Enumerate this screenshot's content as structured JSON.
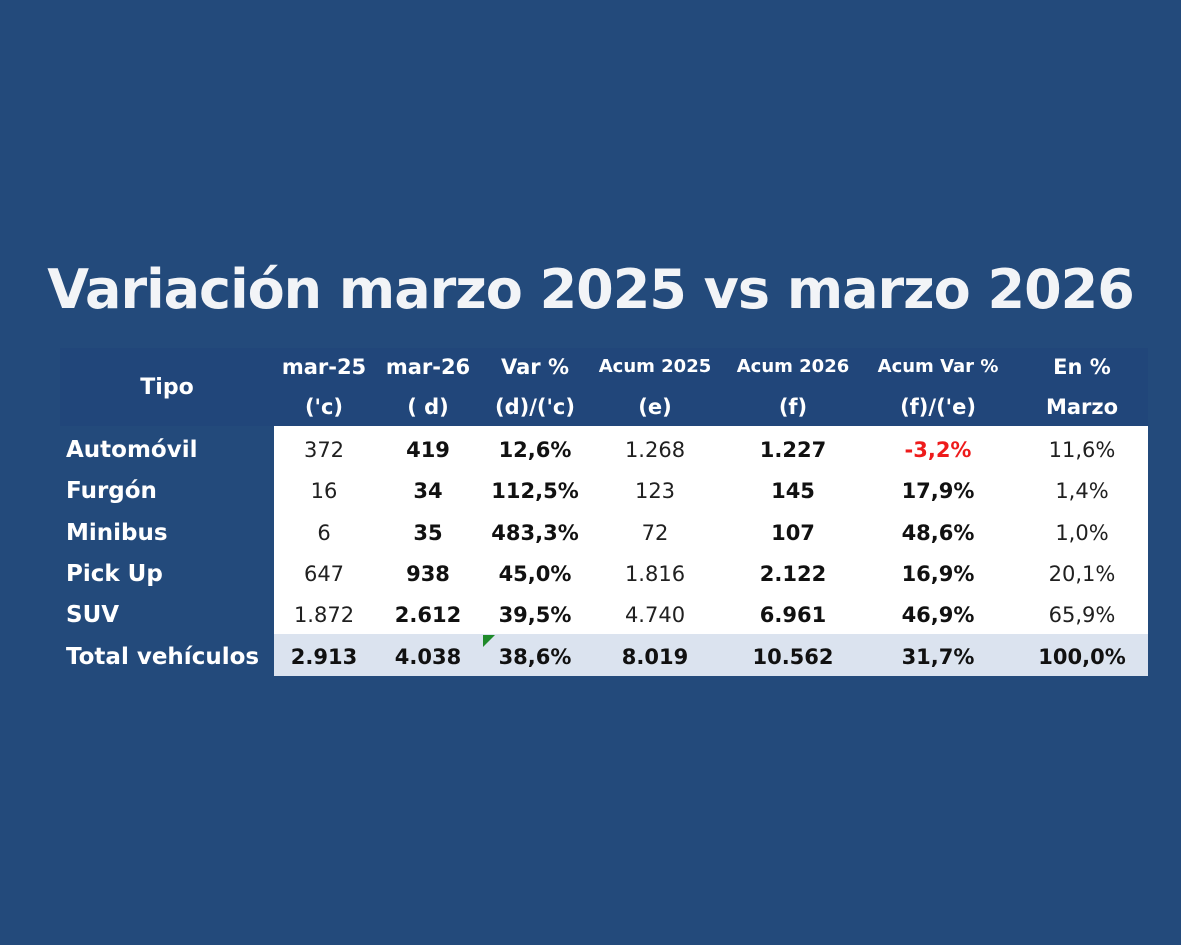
{
  "title": "Variación marzo 2025 vs marzo 2026",
  "colors": {
    "background": "#234a7b",
    "header_band": "#21467a",
    "total_row": "#dbe3ef",
    "negative": "#ee1b1b",
    "marker": "#1f8a2a"
  },
  "header": {
    "tipo": "Tipo",
    "columns": [
      {
        "line1": "mar-25",
        "line2": "('c)"
      },
      {
        "line1": "mar-26",
        "line2": "( d)"
      },
      {
        "line1": "Var %",
        "line2": "(d)/('c)"
      },
      {
        "line1": "Acum 2025",
        "line2": "(e)"
      },
      {
        "line1": "Acum 2026",
        "line2": "(f)"
      },
      {
        "line1": "Acum Var %",
        "line2": "(f)/('e)"
      },
      {
        "line1": "En %",
        "line2": "Marzo"
      }
    ]
  },
  "rows": [
    {
      "label": "Automóvil",
      "cells": [
        "372",
        "419",
        "12,6%",
        "1.268",
        "1.227",
        "-3,2%",
        "11,6%"
      ]
    },
    {
      "label": "Furgón",
      "cells": [
        "16",
        "34",
        "112,5%",
        "123",
        "145",
        "17,9%",
        "1,4%"
      ]
    },
    {
      "label": "Minibus",
      "cells": [
        "6",
        "35",
        "483,3%",
        "72",
        "107",
        "48,6%",
        "1,0%"
      ]
    },
    {
      "label": "Pick Up",
      "cells": [
        "647",
        "938",
        "45,0%",
        "1.816",
        "2.122",
        "16,9%",
        "20,1%"
      ]
    },
    {
      "label": "SUV",
      "cells": [
        "1.872",
        "2.612",
        "39,5%",
        "4.740",
        "6.961",
        "46,9%",
        "65,9%"
      ]
    },
    {
      "label": "Total vehículos",
      "cells": [
        "2.913",
        "4.038",
        "38,6%",
        "8.019",
        "10.562",
        "31,7%",
        "100,0%"
      ]
    }
  ]
}
